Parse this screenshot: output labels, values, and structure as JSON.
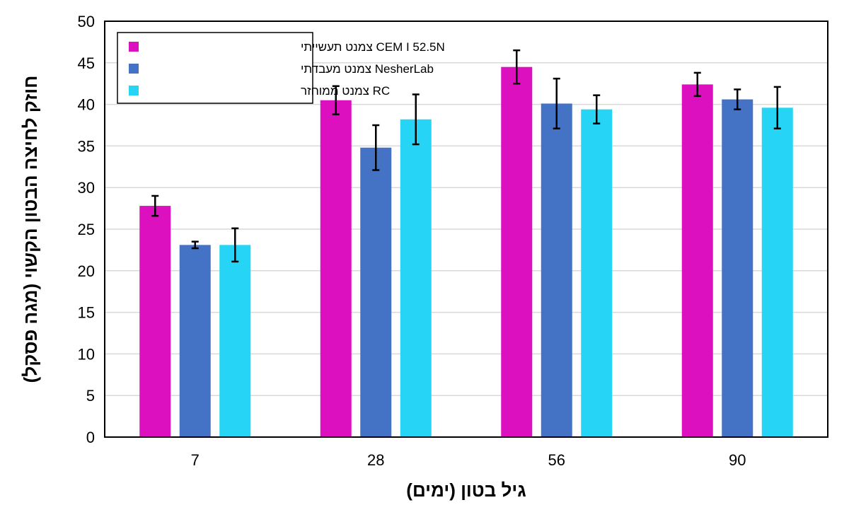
{
  "chart_data": {
    "type": "bar",
    "title": "",
    "xlabel": "גיל בטון (ימים)",
    "ylabel": "חוזק לחיצה הבטון הקשוי (מגה פסקל)",
    "categories": [
      "7",
      "28",
      "56",
      "90"
    ],
    "ylim": [
      0,
      50
    ],
    "yticks": [
      0,
      5,
      10,
      15,
      20,
      25,
      30,
      35,
      40,
      45,
      50
    ],
    "grid": true,
    "legend_position": "top-left",
    "series": [
      {
        "name": "CEM I 52.5N צמנט תעשייתי",
        "color": "#dd10bf",
        "values": [
          27.8,
          40.5,
          44.5,
          42.4
        ],
        "error": [
          1.2,
          1.7,
          2.0,
          1.4
        ]
      },
      {
        "name": "NesherLab צמנט מעבדתי",
        "color": "#4472c4",
        "values": [
          23.1,
          34.8,
          40.1,
          40.6
        ],
        "error": [
          0.4,
          2.7,
          3.0,
          1.2
        ]
      },
      {
        "name": "RC צמנט ממוחזר",
        "color": "#26d5f5",
        "values": [
          23.1,
          38.2,
          39.4,
          39.6
        ],
        "error": [
          2.0,
          3.0,
          1.7,
          2.5
        ]
      }
    ]
  }
}
